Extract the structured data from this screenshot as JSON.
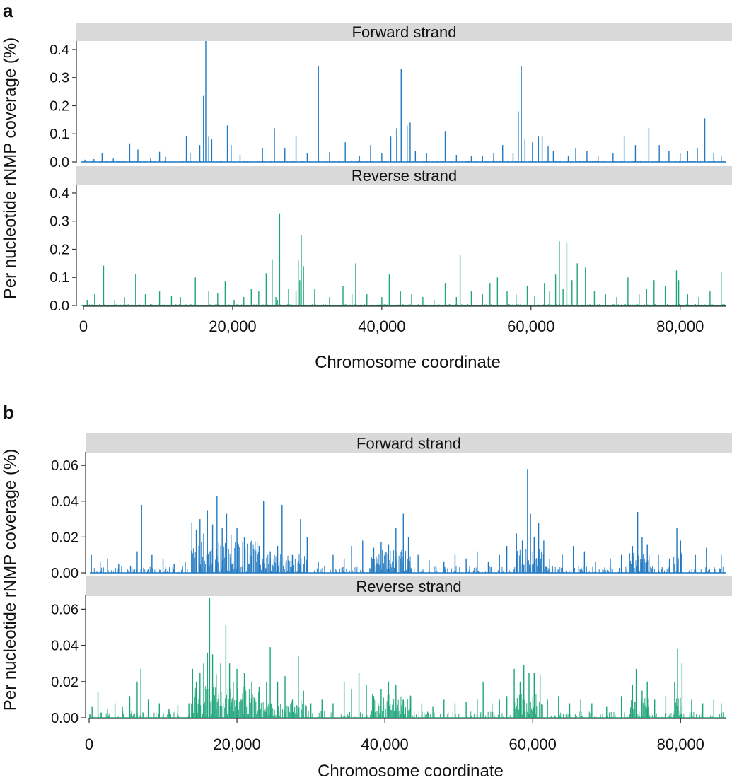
{
  "chart_data": [
    {
      "panel_label": "a",
      "type": "bar",
      "xlabel": "Chromosome coordinate",
      "ylabel": "Per nucleotide rNMP coverage (%)",
      "xlim": [
        0,
        86000
      ],
      "x_ticks": [
        0,
        20000,
        40000,
        60000,
        80000
      ],
      "x_tick_labels": [
        "0",
        "20,000",
        "40,000",
        "60,000",
        "80,000"
      ],
      "facets": [
        {
          "strip": "Forward strand",
          "color": "#1f78c1",
          "ylim": [
            0,
            0.42
          ],
          "y_ticks": [
            0,
            0.1,
            0.2,
            0.3,
            0.4
          ],
          "y_tick_labels": [
            "0.0",
            "0.1",
            "0.2",
            "0.3",
            "0.4"
          ],
          "x": [
            200,
            1400,
            2500,
            4000,
            6200,
            7300,
            9000,
            10200,
            11000,
            13800,
            14300,
            15600,
            16100,
            16400,
            16800,
            17200,
            19300,
            19800,
            21000,
            24000,
            25600,
            27000,
            28500,
            30000,
            31500,
            33000,
            35100,
            37000,
            38500,
            40000,
            41200,
            42000,
            42600,
            43400,
            43800,
            44500,
            46000,
            48500,
            50000,
            52000,
            53500,
            55000,
            56200,
            57600,
            58300,
            58700,
            59200,
            60200,
            61000,
            61500,
            62300,
            63000,
            65000,
            66000,
            67500,
            69000,
            71000,
            72500,
            74000,
            75800,
            77200,
            78500,
            80000,
            81000,
            82300,
            83300,
            84500,
            85500
          ],
          "y": [
            0.008,
            0.01,
            0.03,
            0.012,
            0.066,
            0.044,
            0.012,
            0.036,
            0.018,
            0.092,
            0.032,
            0.06,
            0.235,
            0.43,
            0.09,
            0.08,
            0.13,
            0.06,
            0.025,
            0.05,
            0.12,
            0.05,
            0.09,
            0.03,
            0.34,
            0.035,
            0.07,
            0.02,
            0.06,
            0.03,
            0.09,
            0.12,
            0.33,
            0.13,
            0.14,
            0.04,
            0.03,
            0.11,
            0.025,
            0.02,
            0.02,
            0.03,
            0.06,
            0.03,
            0.18,
            0.34,
            0.08,
            0.07,
            0.09,
            0.09,
            0.055,
            0.04,
            0.02,
            0.05,
            0.04,
            0.02,
            0.03,
            0.09,
            0.06,
            0.12,
            0.06,
            0.04,
            0.03,
            0.04,
            0.05,
            0.155,
            0.03,
            0.02
          ]
        },
        {
          "strip": "Reverse strand",
          "color": "#1da57a",
          "ylim": [
            0,
            0.42
          ],
          "y_ticks": [
            0,
            0.1,
            0.2,
            0.3,
            0.4
          ],
          "y_tick_labels": [
            "0.0",
            "0.1",
            "0.2",
            "0.3",
            "0.4"
          ],
          "x": [
            500,
            1500,
            2700,
            4200,
            5500,
            7000,
            8300,
            10200,
            11800,
            13000,
            15000,
            16800,
            18000,
            19000,
            20200,
            21500,
            22500,
            23500,
            24500,
            25300,
            25800,
            26000,
            26300,
            27500,
            28500,
            28800,
            29000,
            29200,
            29500,
            31000,
            33000,
            34800,
            36000,
            36500,
            38000,
            40000,
            41000,
            42500,
            44000,
            45500,
            47000,
            48500,
            50000,
            50500,
            52000,
            53500,
            54500,
            55500,
            56800,
            58000,
            59500,
            60500,
            61800,
            62500,
            63300,
            63800,
            64300,
            64800,
            65500,
            66200,
            67300,
            68500,
            70000,
            71500,
            73000,
            74500,
            75500,
            76500,
            78000,
            79500,
            79800,
            81000,
            82500,
            84000,
            85500
          ],
          "y": [
            0.02,
            0.04,
            0.142,
            0.02,
            0.03,
            0.113,
            0.04,
            0.05,
            0.035,
            0.03,
            0.1,
            0.05,
            0.045,
            0.085,
            0.02,
            0.03,
            0.06,
            0.05,
            0.115,
            0.165,
            0.03,
            0.02,
            0.328,
            0.06,
            0.05,
            0.16,
            0.09,
            0.25,
            0.14,
            0.06,
            0.03,
            0.07,
            0.04,
            0.15,
            0.04,
            0.03,
            0.11,
            0.05,
            0.04,
            0.03,
            0.02,
            0.08,
            0.03,
            0.178,
            0.05,
            0.04,
            0.08,
            0.1,
            0.05,
            0.04,
            0.07,
            0.035,
            0.08,
            0.05,
            0.11,
            0.228,
            0.06,
            0.225,
            0.09,
            0.15,
            0.135,
            0.05,
            0.04,
            0.03,
            0.1,
            0.04,
            0.06,
            0.09,
            0.07,
            0.125,
            0.09,
            0.04,
            0.03,
            0.05,
            0.12
          ]
        }
      ]
    },
    {
      "panel_label": "b",
      "type": "bar",
      "xlabel": "Chromosome coordinate",
      "ylabel": "Per nucleotide rNMP coverage (%)",
      "xlim": [
        0,
        86000
      ],
      "x_ticks": [
        0,
        20000,
        40000,
        60000,
        80000
      ],
      "x_tick_labels": [
        "0",
        "20,000",
        "40,000",
        "60,000",
        "80,000"
      ],
      "facets": [
        {
          "strip": "Forward strand",
          "color": "#1f78c1",
          "ylim": [
            0,
            0.066
          ],
          "y_ticks": [
            0,
            0.02,
            0.04,
            0.06
          ],
          "y_tick_labels": [
            "0.00",
            "0.02",
            "0.04",
            "0.06"
          ],
          "x": [
            300,
            1500,
            2500,
            4000,
            5600,
            6500,
            7100,
            8500,
            10000,
            11500,
            13000,
            13900,
            14500,
            15000,
            15500,
            16000,
            16700,
            17300,
            18000,
            18600,
            19200,
            20000,
            21000,
            22000,
            23000,
            23600,
            24500,
            25500,
            26100,
            27500,
            28600,
            29500,
            31000,
            33000,
            34500,
            35500,
            37000,
            38500,
            39500,
            40500,
            41500,
            42500,
            43200,
            44500,
            46000,
            48000,
            49500,
            51000,
            52500,
            54000,
            55500,
            56500,
            57800,
            58600,
            59300,
            59700,
            60200,
            60800,
            61500,
            62300,
            64000,
            65500,
            67000,
            68500,
            70500,
            72000,
            73500,
            74200,
            74800,
            75500,
            77000,
            78500,
            79500,
            80000,
            82000,
            83500,
            85500
          ],
          "y": [
            0.01,
            0.006,
            0.008,
            0.005,
            0.004,
            0.012,
            0.038,
            0.01,
            0.008,
            0.005,
            0.006,
            0.028,
            0.024,
            0.03,
            0.022,
            0.035,
            0.027,
            0.043,
            0.025,
            0.033,
            0.021,
            0.025,
            0.02,
            0.018,
            0.015,
            0.04,
            0.012,
            0.015,
            0.038,
            0.01,
            0.03,
            0.02,
            0.006,
            0.01,
            0.008,
            0.015,
            0.018,
            0.014,
            0.017,
            0.016,
            0.025,
            0.033,
            0.02,
            0.01,
            0.007,
            0.006,
            0.01,
            0.008,
            0.012,
            0.006,
            0.01,
            0.015,
            0.022,
            0.018,
            0.058,
            0.033,
            0.02,
            0.028,
            0.018,
            0.008,
            0.01,
            0.015,
            0.012,
            0.006,
            0.008,
            0.01,
            0.015,
            0.034,
            0.02,
            0.016,
            0.01,
            0.008,
            0.025,
            0.018,
            0.01,
            0.014,
            0.01
          ]
        },
        {
          "strip": "Reverse strand",
          "color": "#1da57a",
          "ylim": [
            0,
            0.066
          ],
          "y_ticks": [
            0,
            0.02,
            0.04,
            0.06
          ],
          "y_tick_labels": [
            "0.00",
            "0.02",
            "0.04",
            "0.06"
          ],
          "x": [
            400,
            1200,
            2500,
            3500,
            4500,
            5500,
            6500,
            7000,
            8000,
            9500,
            10800,
            12000,
            13500,
            14000,
            14500,
            15000,
            15500,
            16000,
            16300,
            16700,
            17200,
            17800,
            18500,
            19000,
            19500,
            20000,
            21000,
            22000,
            23000,
            24000,
            24500,
            25500,
            26500,
            27500,
            28300,
            29000,
            30000,
            31500,
            33000,
            34500,
            35500,
            36500,
            37500,
            38500,
            39500,
            40500,
            41500,
            42500,
            43500,
            45000,
            46500,
            48000,
            49500,
            51000,
            52500,
            53300,
            54500,
            55500,
            56500,
            57500,
            58300,
            58800,
            59500,
            60200,
            61000,
            62000,
            63500,
            65000,
            66500,
            68000,
            70000,
            72000,
            73500,
            74000,
            74800,
            75500,
            76500,
            78000,
            79200,
            79600,
            80200,
            81500,
            83000,
            84500,
            85500
          ],
          "y": [
            0.006,
            0.014,
            0.005,
            0.008,
            0.006,
            0.012,
            0.02,
            0.027,
            0.01,
            0.008,
            0.005,
            0.007,
            0.008,
            0.027,
            0.02,
            0.025,
            0.03,
            0.036,
            0.066,
            0.035,
            0.024,
            0.03,
            0.051,
            0.03,
            0.02,
            0.027,
            0.025,
            0.02,
            0.017,
            0.02,
            0.039,
            0.02,
            0.023,
            0.01,
            0.034,
            0.015,
            0.008,
            0.01,
            0.008,
            0.02,
            0.016,
            0.025,
            0.018,
            0.012,
            0.016,
            0.02,
            0.018,
            0.01,
            0.012,
            0.008,
            0.006,
            0.01,
            0.008,
            0.009,
            0.01,
            0.02,
            0.008,
            0.01,
            0.012,
            0.027,
            0.02,
            0.029,
            0.025,
            0.025,
            0.024,
            0.01,
            0.012,
            0.008,
            0.01,
            0.008,
            0.006,
            0.012,
            0.018,
            0.027,
            0.015,
            0.02,
            0.01,
            0.012,
            0.02,
            0.038,
            0.03,
            0.01,
            0.008,
            0.01,
            0.008
          ]
        }
      ]
    }
  ]
}
